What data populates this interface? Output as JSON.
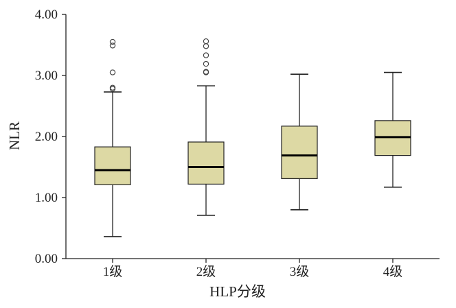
{
  "chart_data": {
    "type": "boxplot",
    "xlabel": "HLP分级",
    "ylabel": "NLR",
    "ylim": [
      0,
      4
    ],
    "yticks": [
      "0.00",
      "1.00",
      "2.00",
      "3.00",
      "4.00"
    ],
    "categories": [
      "1级",
      "2级",
      "3级",
      "4级"
    ],
    "boxes": [
      {
        "category": "1级",
        "min": 0.36,
        "q1": 1.21,
        "median": 1.45,
        "q3": 1.83,
        "max": 2.73,
        "outliers": [
          2.78,
          2.8,
          3.05,
          3.49,
          3.55
        ]
      },
      {
        "category": "2级",
        "min": 0.71,
        "q1": 1.22,
        "median": 1.5,
        "q3": 1.91,
        "max": 2.83,
        "outliers": [
          3.05,
          3.06,
          3.19,
          3.33,
          3.48,
          3.56
        ]
      },
      {
        "category": "3级",
        "min": 0.8,
        "q1": 1.31,
        "median": 1.69,
        "q3": 2.17,
        "max": 3.02,
        "outliers": []
      },
      {
        "category": "4级",
        "min": 1.17,
        "q1": 1.69,
        "median": 1.99,
        "q3": 2.26,
        "max": 3.05,
        "outliers": []
      }
    ],
    "box_color": "#ddd9a4",
    "line_color": "#222222",
    "grid": false
  }
}
